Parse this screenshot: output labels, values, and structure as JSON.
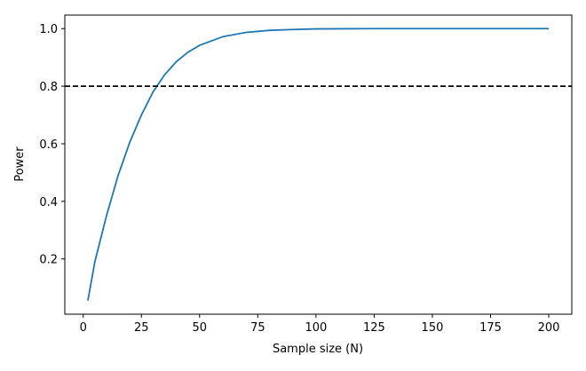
{
  "chart_data": {
    "type": "line",
    "x_label": "Sample size (N)",
    "y_label": "Power",
    "x": [
      2,
      5,
      10,
      15,
      20,
      25,
      30,
      35,
      40,
      45,
      50,
      60,
      70,
      80,
      90,
      100,
      125,
      150,
      175,
      200
    ],
    "series": [
      {
        "color": "#1f77b4",
        "values": [
          0.055,
          0.19,
          0.35,
          0.49,
          0.605,
          0.7,
          0.78,
          0.84,
          0.885,
          0.918,
          0.942,
          0.972,
          0.987,
          0.994,
          0.997,
          0.999,
          1.0,
          1.0,
          1.0,
          1.0
        ]
      }
    ],
    "hline": {
      "value": 0.8,
      "color": "#000000"
    },
    "xlim": [
      -7.9,
      209.9
    ],
    "ylim": [
      0.008,
      1.047
    ],
    "xticks": [
      0,
      25,
      50,
      75,
      100,
      125,
      150,
      175,
      200
    ],
    "yticks": [
      0.2,
      0.4,
      0.6,
      0.8,
      {
        "value": 1,
        "label": "1.0"
      }
    ]
  }
}
